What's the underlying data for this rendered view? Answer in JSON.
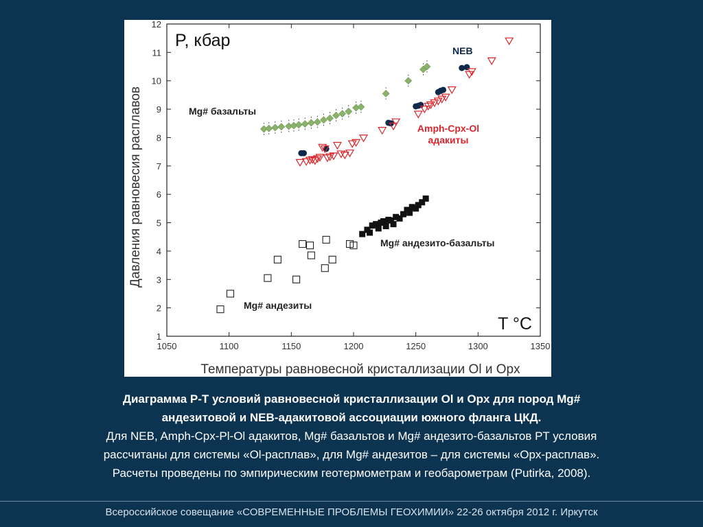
{
  "chart_data": {
    "type": "scatter",
    "ylabel": "Давления равновесия расплавов",
    "xlabel": "Температуры равновесной кристаллизации Ol и Opx",
    "y_axis_title": "P, кбар",
    "x_axis_title": "T °C",
    "xlim": [
      1050,
      1350
    ],
    "ylim": [
      1,
      12
    ],
    "xticks": [
      "1050",
      "1100",
      "1150",
      "1200",
      "1250",
      "1300",
      "1350"
    ],
    "yticks": [
      "1",
      "2",
      "3",
      "4",
      "5",
      "6",
      "7",
      "8",
      "9",
      "10",
      "11",
      "12"
    ],
    "grid": false,
    "series": [
      {
        "name": "Mg# базальты",
        "marker": "diamond",
        "color": "#8bb26a",
        "x": [
          1128,
          1132,
          1137,
          1142,
          1148,
          1152,
          1156,
          1161,
          1166,
          1171,
          1176,
          1181,
          1186,
          1191,
          1196,
          1202,
          1206,
          1226,
          1244,
          1256,
          1259
        ],
        "y": [
          8.3,
          8.32,
          8.35,
          8.38,
          8.4,
          8.42,
          8.45,
          8.48,
          8.52,
          8.55,
          8.62,
          8.68,
          8.78,
          8.84,
          8.92,
          9.05,
          9.08,
          9.55,
          10.0,
          10.4,
          10.5
        ]
      },
      {
        "name": "NEB",
        "marker": "circle",
        "color": "#0d2a4a",
        "x": [
          1158,
          1160,
          1178,
          1228,
          1230,
          1250,
          1252,
          1254,
          1268,
          1270,
          1272,
          1287,
          1291
        ],
        "y": [
          7.45,
          7.45,
          7.6,
          8.52,
          8.5,
          9.1,
          9.12,
          9.15,
          9.6,
          9.65,
          9.68,
          10.45,
          10.48
        ]
      },
      {
        "name": "Amph-Cpx-Ol адакиты",
        "marker": "triangle-down",
        "color": "#d8262c",
        "x": [
          1157,
          1162,
          1165,
          1167,
          1169,
          1171,
          1173,
          1175,
          1177,
          1179,
          1181,
          1184,
          1187,
          1190,
          1193,
          1197,
          1199,
          1202,
          1208,
          1223,
          1232,
          1234,
          1252,
          1257,
          1260,
          1262,
          1265,
          1268,
          1271,
          1274,
          1279,
          1293,
          1295,
          1311,
          1325
        ],
        "y": [
          7.12,
          7.15,
          7.2,
          7.22,
          7.18,
          7.25,
          7.3,
          7.65,
          7.6,
          7.28,
          7.32,
          7.35,
          7.72,
          7.42,
          7.38,
          7.45,
          7.78,
          7.82,
          7.98,
          8.25,
          8.4,
          8.55,
          8.82,
          9.0,
          9.1,
          9.15,
          9.22,
          9.28,
          9.35,
          9.42,
          9.68,
          10.22,
          10.32,
          10.7,
          11.4
        ]
      },
      {
        "name": "Mg# андезито-базальты",
        "marker": "square-filled",
        "color": "#111111",
        "x": [
          1207,
          1211,
          1213,
          1215,
          1218,
          1220,
          1222,
          1224,
          1226,
          1228,
          1230,
          1232,
          1234,
          1237,
          1240,
          1243,
          1245,
          1247,
          1250,
          1252,
          1255,
          1258
        ],
        "y": [
          4.6,
          4.75,
          4.65,
          4.9,
          4.95,
          4.8,
          5.0,
          5.05,
          4.88,
          5.1,
          5.08,
          4.95,
          5.2,
          5.15,
          5.3,
          5.45,
          5.35,
          5.55,
          5.5,
          5.62,
          5.72,
          5.85
        ]
      },
      {
        "name": "Mg# андезиты",
        "marker": "square-open",
        "color": "#222222",
        "x": [
          1093,
          1101,
          1131,
          1139,
          1154,
          1159,
          1166,
          1165,
          1177,
          1178,
          1183,
          1197,
          1200
        ],
        "y": [
          1.95,
          2.5,
          3.05,
          3.7,
          3.0,
          4.25,
          3.85,
          4.2,
          3.4,
          4.4,
          3.7,
          4.25,
          4.2
        ]
      }
    ],
    "annotations": [
      "NEB",
      "Mg# базальты",
      "Amph-Cpx-Ol",
      "адакиты",
      "Mg# андезито-базальты",
      "Mg# андезиты"
    ]
  },
  "caption": {
    "bold_line1": "Диаграмма P-T условий равновесной кристаллизации Ol и Opx для пород Mg#",
    "bold_line2": "андезитовой и NEB-адакитовой ассоциации южного фланга ЦКД.",
    "line3": "Для NEB, Amph-Cpx-Pl-Ol адакитов, Mg# базальтов и Mg# андезито-базальтов PT условия",
    "line4": "рассчитаны для системы «Ol-расплав», для Mg# андезитов – для системы «Opx-расплав».",
    "line5": "Расчеты проведены по эмпирическим геотермометрам и геобарометрам (Putirka, 2008)."
  },
  "footer": {
    "text": "Всероссийское совещание «СОВРЕМЕННЫЕ ПРОБЛЕМЫ ГЕОХИМИИ» 22-26 октября 2012 г. Иркутск"
  }
}
